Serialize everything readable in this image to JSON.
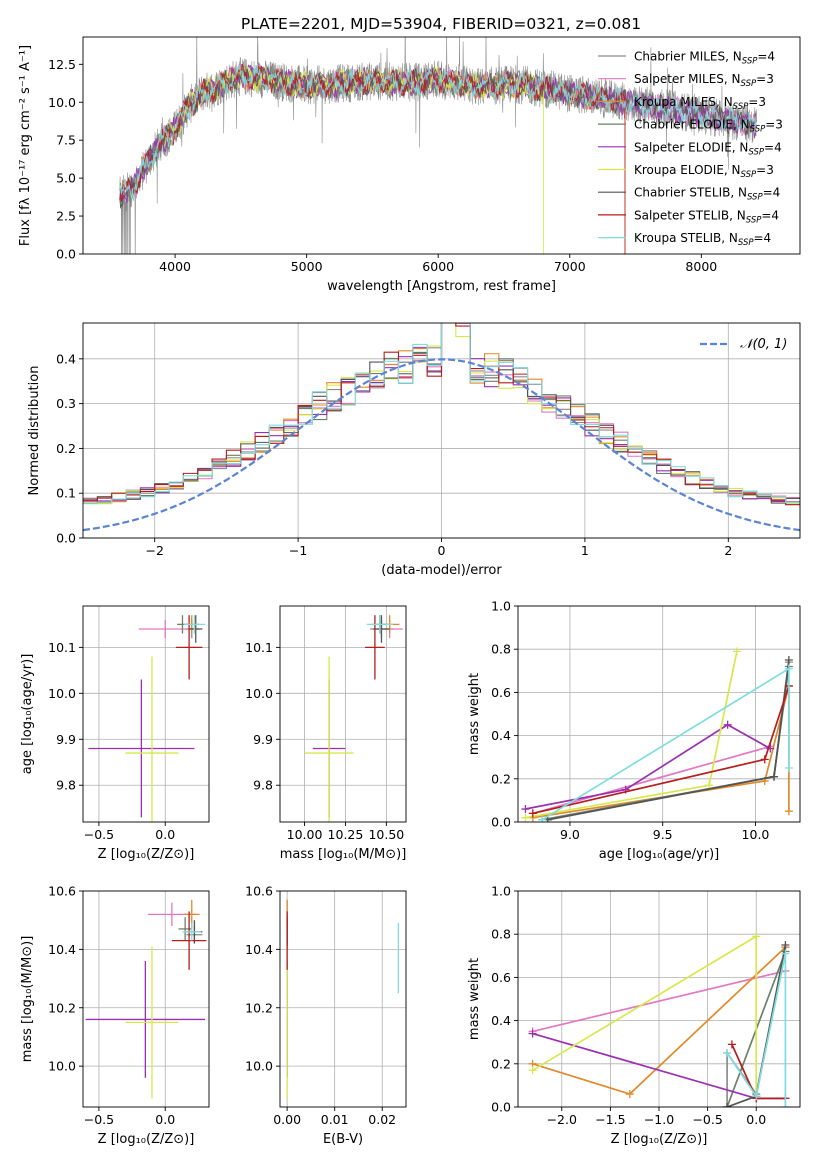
{
  "figure_title": "PLATE=2201, MJD=53904, FIBERID=0321, z=0.081",
  "models": [
    {
      "name": "Chabrier MILES",
      "nssp": "4",
      "color": "#8c8c8c"
    },
    {
      "name": "Salpeter MILES",
      "nssp": "3",
      "color": "#e377c2"
    },
    {
      "name": "Kroupa MILES",
      "nssp": "3",
      "color": "#e08a2a"
    },
    {
      "name": "Chabrier ELODIE",
      "nssp": "3",
      "color": "#6e7f6e"
    },
    {
      "name": "Salpeter ELODIE",
      "nssp": "4",
      "color": "#9a30b0"
    },
    {
      "name": "Kroupa ELODIE",
      "nssp": "3",
      "color": "#d7e84a"
    },
    {
      "name": "Chabrier STELIB",
      "nssp": "4",
      "color": "#555555"
    },
    {
      "name": "Salpeter STELIB",
      "nssp": "4",
      "color": "#b81c1c"
    },
    {
      "name": "Kroupa STELIB",
      "nssp": "4",
      "color": "#7fdde0"
    }
  ],
  "legend_nssp_prefix": "N",
  "legend_nssp_sub": "SSP",
  "chart_data": [
    {
      "id": "spectrum",
      "type": "line",
      "xlabel": "wavelength [Angstrom, rest frame]",
      "ylabel": "Flux [fλ 10⁻¹⁷ erg cm⁻² s⁻¹ A⁻¹]",
      "xlim": [
        3300,
        8750
      ],
      "ylim": [
        0,
        14.3
      ],
      "xticks": [
        4000,
        5000,
        6000,
        7000,
        8000
      ],
      "yticks": [
        0.0,
        2.5,
        5.0,
        7.5,
        10.0,
        12.5
      ],
      "xtick_labels": [
        "4000",
        "5000",
        "6000",
        "7000",
        "8000"
      ],
      "ytick_labels": [
        "0.0",
        "2.5",
        "5.0",
        "7.5",
        "10.0",
        "12.5"
      ],
      "continuum": {
        "x": [
          3580,
          3700,
          3800,
          3900,
          4000,
          4100,
          4200,
          4300,
          4400,
          4500,
          4700,
          5000,
          5200,
          5500,
          5800,
          6000,
          6300,
          6600,
          7000,
          7500,
          8000,
          8400
        ],
        "y": [
          3.8,
          4.6,
          6.2,
          7.4,
          8.2,
          9.7,
          10.6,
          10.9,
          11.4,
          11.7,
          11.5,
          11.1,
          11.2,
          11.4,
          11.3,
          11.5,
          11.0,
          11.2,
          10.6,
          9.9,
          9.2,
          8.5
        ]
      },
      "data_xrange": [
        3580,
        8420
      ]
    },
    {
      "id": "residuals",
      "type": "histogram",
      "xlabel": "(data-model)/error",
      "ylabel": "Normed distribution",
      "xlim": [
        -2.5,
        2.5
      ],
      "ylim": [
        0,
        0.48
      ],
      "xticks": [
        -2,
        -1,
        0,
        1,
        2
      ],
      "yticks": [
        0.0,
        0.1,
        0.2,
        0.3,
        0.4
      ],
      "xtick_labels": [
        "−2",
        "−1",
        "0",
        "1",
        "2"
      ],
      "ytick_labels": [
        "0.0",
        "0.1",
        "0.2",
        "0.3",
        "0.4"
      ],
      "normal_label": "𝒩(0, 1)",
      "normal_color": "#5b84d4",
      "bins": [
        -2.5,
        2.5,
        50
      ]
    },
    {
      "id": "age-vs-Z",
      "type": "errorbar",
      "xlabel": "Z [log₁₀(Z/Z⊙)]",
      "ylabel": "age  [log₁₀(age/yr)]",
      "xlim": [
        -0.62,
        0.33
      ],
      "ylim": [
        9.72,
        10.19
      ],
      "xticks": [
        -0.5,
        0.0
      ],
      "yticks": [
        9.8,
        9.9,
        10.0,
        10.1
      ],
      "xtick_labels": [
        "−0.5",
        "0.0"
      ],
      "ytick_labels": [
        "9.8",
        "9.9",
        "10.0",
        "10.1"
      ],
      "points": [
        {
          "x": 0.2,
          "y": 10.14,
          "xerr": 0.05,
          "yerr": 0.02
        },
        {
          "x": 0.0,
          "y": 10.14,
          "xerr": 0.2,
          "yerr": 0.02
        },
        {
          "x": 0.2,
          "y": 10.15,
          "xerr": 0.06,
          "yerr": 0.02
        },
        {
          "x": 0.13,
          "y": 10.15,
          "xerr": 0.04,
          "yerr": 0.02
        },
        {
          "x": -0.18,
          "y": 9.88,
          "xerr": 0.4,
          "yerr": 0.15
        },
        {
          "x": -0.1,
          "y": 9.87,
          "xerr": 0.2,
          "yerr": 0.21
        },
        {
          "x": 0.23,
          "y": 10.14,
          "xerr": 0.05,
          "yerr": 0.03
        },
        {
          "x": 0.18,
          "y": 10.1,
          "xerr": 0.1,
          "yerr": 0.07
        },
        {
          "x": 0.22,
          "y": 10.15,
          "xerr": 0.08,
          "yerr": 0.02
        }
      ]
    },
    {
      "id": "age-vs-mass",
      "type": "errorbar",
      "xlabel": "mass [log₁₀(M/M⊙)]",
      "ylabel": "",
      "xlim": [
        9.85,
        10.62
      ],
      "ylim": [
        9.72,
        10.19
      ],
      "xticks": [
        10.0,
        10.25,
        10.5
      ],
      "yticks": [
        9.8,
        9.9,
        10.0,
        10.1
      ],
      "xtick_labels": [
        "10.00",
        "10.25",
        "10.50"
      ],
      "ytick_labels": [
        "9.8",
        "9.9",
        "10.0",
        "10.1"
      ],
      "points": [
        {
          "x": 10.47,
          "y": 10.14,
          "xerr": 0.07,
          "yerr": 0.02
        },
        {
          "x": 10.52,
          "y": 10.14,
          "xerr": 0.08,
          "yerr": 0.02
        },
        {
          "x": 10.52,
          "y": 10.15,
          "xerr": 0.06,
          "yerr": 0.02
        },
        {
          "x": 10.46,
          "y": 10.15,
          "xerr": 0.05,
          "yerr": 0.02
        },
        {
          "x": 10.15,
          "y": 9.88,
          "xerr": 0.1,
          "yerr": 0.15
        },
        {
          "x": 10.15,
          "y": 9.87,
          "xerr": 0.15,
          "yerr": 0.21
        },
        {
          "x": 10.47,
          "y": 10.14,
          "xerr": 0.05,
          "yerr": 0.03
        },
        {
          "x": 10.43,
          "y": 10.1,
          "xerr": 0.06,
          "yerr": 0.07
        },
        {
          "x": 10.46,
          "y": 10.15,
          "xerr": 0.08,
          "yerr": 0.02
        }
      ]
    },
    {
      "id": "mass-weight-vs-age",
      "type": "line",
      "xlabel": "age  [log₁₀(age/yr)]",
      "ylabel": "mass weight",
      "xlim": [
        8.72,
        10.24
      ],
      "ylim": [
        0,
        1.0
      ],
      "xticks": [
        9.0,
        9.5,
        10.0
      ],
      "yticks": [
        0.0,
        0.2,
        0.4,
        0.6,
        0.8,
        1.0
      ],
      "xtick_labels": [
        "9.0",
        "9.5",
        "10.0"
      ],
      "ytick_labels": [
        "0.0",
        "0.2",
        "0.4",
        "0.6",
        "0.8",
        "1.0"
      ],
      "series": [
        {
          "x": [
            8.88,
            10.1,
            10.18
          ],
          "y": [
            0.01,
            0.21,
            0.74
          ]
        },
        {
          "x": [
            8.8,
            10.08
          ],
          "y": [
            0.04,
            0.35
          ]
        },
        {
          "x": [
            8.8,
            10.05,
            10.18,
            10.18
          ],
          "y": [
            0.02,
            0.19,
            0.63,
            0.05
          ]
        },
        {
          "x": [
            8.85,
            10.1,
            10.18
          ],
          "y": [
            0.01,
            0.21,
            0.72
          ]
        },
        {
          "x": [
            8.76,
            9.3,
            9.85,
            10.08
          ],
          "y": [
            0.06,
            0.15,
            0.45,
            0.34
          ]
        },
        {
          "x": [
            8.76,
            9.75,
            9.9
          ],
          "y": [
            0.02,
            0.17,
            0.79
          ]
        },
        {
          "x": [
            8.88,
            10.1,
            10.18
          ],
          "y": [
            0.01,
            0.21,
            0.75
          ]
        },
        {
          "x": [
            8.8,
            10.05,
            10.18
          ],
          "y": [
            0.04,
            0.29,
            0.63
          ]
        },
        {
          "x": [
            8.85,
            10.18,
            10.18
          ],
          "y": [
            0.01,
            0.71,
            0.25
          ]
        }
      ]
    },
    {
      "id": "mass-vs-Z",
      "type": "errorbar",
      "xlabel": "Z [log₁₀(Z/Z⊙)]",
      "ylabel": "mass [log₁₀(M/M⊙)]",
      "xlim": [
        -0.62,
        0.33
      ],
      "ylim": [
        9.86,
        10.6
      ],
      "xticks": [
        -0.5,
        0.0
      ],
      "yticks": [
        10.0,
        10.2,
        10.4,
        10.6
      ],
      "xtick_labels": [
        "−0.5",
        "0.0"
      ],
      "ytick_labels": [
        "10.0",
        "10.2",
        "10.4",
        "10.6"
      ],
      "points": [
        {
          "x": 0.22,
          "y": 10.45,
          "xerr": 0.06,
          "yerr": 0.03
        },
        {
          "x": 0.05,
          "y": 10.52,
          "xerr": 0.18,
          "yerr": 0.04
        },
        {
          "x": 0.2,
          "y": 10.52,
          "xerr": 0.06,
          "yerr": 0.05
        },
        {
          "x": 0.15,
          "y": 10.47,
          "xerr": 0.05,
          "yerr": 0.04
        },
        {
          "x": -0.15,
          "y": 10.16,
          "xerr": 0.45,
          "yerr": 0.2
        },
        {
          "x": -0.1,
          "y": 10.15,
          "xerr": 0.2,
          "yerr": 0.26
        },
        {
          "x": 0.22,
          "y": 10.46,
          "xerr": 0.06,
          "yerr": 0.04
        },
        {
          "x": 0.18,
          "y": 10.43,
          "xerr": 0.13,
          "yerr": 0.1
        },
        {
          "x": 0.2,
          "y": 10.46,
          "xerr": 0.07,
          "yerr": 0.03
        }
      ]
    },
    {
      "id": "mass-vs-EBV",
      "type": "errorbar",
      "xlabel": "E(B-V)",
      "ylabel": "",
      "xlim": [
        -0.0015,
        0.025
      ],
      "ylim": [
        9.86,
        10.6
      ],
      "xticks": [
        0.0,
        0.01,
        0.02
      ],
      "yticks": [
        10.0,
        10.2,
        10.4,
        10.6
      ],
      "xtick_labels": [
        "0.00",
        "0.01",
        "0.02"
      ],
      "ytick_labels": [
        "10.0",
        "10.2",
        "10.4",
        "10.6"
      ],
      "points": [
        {
          "x": 0.0,
          "y": 10.45,
          "xerr": 0.0,
          "yerr": 0.05
        },
        {
          "x": 0.0,
          "y": 10.52,
          "xerr": 0.0,
          "yerr": 0.05
        },
        {
          "x": 0.0,
          "y": 10.52,
          "xerr": 0.0,
          "yerr": 0.05
        },
        {
          "x": 0.0,
          "y": 10.47,
          "xerr": 0.0,
          "yerr": 0.05
        },
        {
          "x": 0.0,
          "y": 10.16,
          "xerr": 0.0,
          "yerr": 0.2
        },
        {
          "x": 0.0,
          "y": 10.15,
          "xerr": 0.0,
          "yerr": 0.26
        },
        {
          "x": 0.0,
          "y": 10.46,
          "xerr": 0.0,
          "yerr": 0.05
        },
        {
          "x": 0.0,
          "y": 10.43,
          "xerr": 0.0,
          "yerr": 0.1
        },
        {
          "x": 0.0234,
          "y": 10.37,
          "xerr": 0.0,
          "yerr": 0.12
        }
      ]
    },
    {
      "id": "mass-weight-vs-Z",
      "type": "line",
      "xlabel": "Z [log₁₀(Z/Z⊙)]",
      "ylabel": "mass weight",
      "xlim": [
        -2.45,
        0.45
      ],
      "ylim": [
        0,
        1.0
      ],
      "xticks": [
        -2.0,
        -1.5,
        -1.0,
        -0.5,
        0.0
      ],
      "yticks": [
        0.0,
        0.2,
        0.4,
        0.6,
        0.8,
        1.0
      ],
      "xtick_labels": [
        "−2.0",
        "−1.5",
        "−1.0",
        "−0.5",
        "0.0"
      ],
      "ytick_labels": [
        "0.0",
        "0.2",
        "0.4",
        "0.6",
        "0.8",
        "1.0"
      ],
      "series": [
        {
          "x": [
            -0.3,
            -0.3,
            0.0,
            0.3
          ],
          "y": [
            0.0,
            0.25,
            0.06,
            0.74
          ]
        },
        {
          "x": [
            -2.3,
            0.3
          ],
          "y": [
            0.35,
            0.63
          ]
        },
        {
          "x": [
            -2.3,
            -1.3,
            0.3
          ],
          "y": [
            0.2,
            0.06,
            0.74
          ]
        },
        {
          "x": [
            -0.3,
            0.3
          ],
          "y": [
            0.0,
            0.72
          ]
        },
        {
          "x": [
            -2.3,
            0.0,
            0.3
          ],
          "y": [
            0.34,
            0.04,
            0.04
          ]
        },
        {
          "x": [
            -2.3,
            0.0,
            0.0
          ],
          "y": [
            0.17,
            0.79,
            0.05
          ]
        },
        {
          "x": [
            -0.3,
            0.0,
            0.3
          ],
          "y": [
            0.0,
            0.05,
            0.75
          ]
        },
        {
          "x": [
            -0.25,
            0.0,
            0.3
          ],
          "y": [
            0.29,
            0.04,
            0.04
          ]
        },
        {
          "x": [
            -0.3,
            0.0,
            0.3,
            0.3
          ],
          "y": [
            0.25,
            0.05,
            0.71,
            0.0
          ]
        }
      ]
    }
  ]
}
